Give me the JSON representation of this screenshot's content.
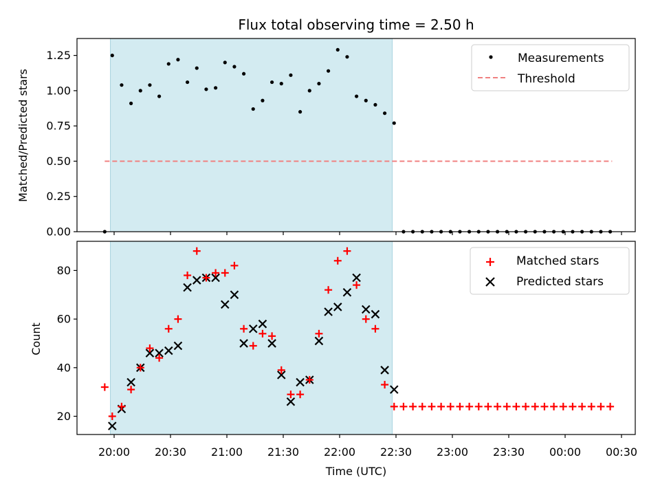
{
  "chart_data": {
    "title": "Flux total observing time = 2.50 h",
    "shaded_interval": [
      "19:58",
      "22:28"
    ],
    "x_ticks": [
      "20:00",
      "20:30",
      "21:00",
      "21:30",
      "22:00",
      "22:30",
      "23:00",
      "23:30",
      "00:00",
      "00:30"
    ],
    "xlabel": "Time (UTC)",
    "shade_color": "#d3ebf1",
    "charts": [
      {
        "type": "scatter",
        "ylabel": "Matched/Predicted stars",
        "ylim": [
          0,
          1.37
        ],
        "yticks": [
          "0.00",
          "0.25",
          "0.50",
          "0.75",
          "1.00",
          "1.25"
        ],
        "legend_position": "top-right",
        "legend": [
          "Measurements",
          "Threshold"
        ],
        "threshold": {
          "value": 0.5,
          "x_start": "19:55",
          "x_end": "00:25",
          "color": "#f08080"
        },
        "series": [
          {
            "name": "Measurements",
            "color": "#000000",
            "x": [
              "19:55",
              "19:59",
              "20:04",
              "20:09",
              "20:14",
              "20:19",
              "20:24",
              "20:29",
              "20:34",
              "20:39",
              "20:44",
              "20:49",
              "20:54",
              "20:59",
              "21:04",
              "21:09",
              "21:14",
              "21:19",
              "21:24",
              "21:29",
              "21:34",
              "21:39",
              "21:44",
              "21:49",
              "21:54",
              "21:59",
              "22:04",
              "22:09",
              "22:14",
              "22:19",
              "22:24",
              "22:29",
              "22:34",
              "22:39",
              "22:44",
              "22:49",
              "22:54",
              "22:59",
              "23:04",
              "23:09",
              "23:14",
              "23:19",
              "23:24",
              "23:29",
              "23:34",
              "23:39",
              "23:44",
              "23:49",
              "23:54",
              "23:59",
              "00:04",
              "00:09",
              "00:14",
              "00:19",
              "00:24"
            ],
            "y": [
              0.0,
              1.25,
              1.04,
              0.91,
              1.0,
              1.04,
              0.96,
              1.19,
              1.22,
              1.06,
              1.16,
              1.01,
              1.02,
              1.2,
              1.17,
              1.12,
              0.87,
              0.93,
              1.06,
              1.05,
              1.11,
              0.85,
              1.0,
              1.05,
              1.14,
              1.29,
              1.24,
              0.96,
              0.93,
              0.9,
              0.84,
              0.77,
              0.0,
              0.0,
              0.0,
              0.0,
              0.0,
              0.0,
              0.0,
              0.0,
              0.0,
              0.0,
              0.0,
              0.0,
              0.0,
              0.0,
              0.0,
              0.0,
              0.0,
              0.0,
              0.0,
              0.0,
              0.0,
              0.0,
              0.0
            ]
          }
        ]
      },
      {
        "type": "scatter",
        "ylabel": "Count",
        "ylim": [
          12.5,
          92
        ],
        "yticks": [
          "20",
          "40",
          "60",
          "80"
        ],
        "legend_position": "top-right",
        "legend": [
          "Matched stars",
          "Predicted stars"
        ],
        "series": [
          {
            "name": "Matched stars",
            "color": "#ff0000",
            "x": [
              "19:55",
              "19:59",
              "20:04",
              "20:09",
              "20:14",
              "20:19",
              "20:24",
              "20:29",
              "20:34",
              "20:39",
              "20:44",
              "20:49",
              "20:54",
              "20:59",
              "21:04",
              "21:09",
              "21:14",
              "21:19",
              "21:24",
              "21:29",
              "21:34",
              "21:39",
              "21:44",
              "21:49",
              "21:54",
              "21:59",
              "22:04",
              "22:09",
              "22:14",
              "22:19",
              "22:24",
              "22:29",
              "22:34",
              "22:39",
              "22:44",
              "22:49",
              "22:54",
              "22:59",
              "23:04",
              "23:09",
              "23:14",
              "23:19",
              "23:24",
              "23:29",
              "23:34",
              "23:39",
              "23:44",
              "23:49",
              "23:54",
              "23:59",
              "00:04",
              "00:09",
              "00:14",
              "00:19",
              "00:24"
            ],
            "y": [
              32,
              20,
              24,
              31,
              40,
              48,
              44,
              56,
              60,
              78,
              88,
              77,
              79,
              79,
              82,
              56,
              49,
              54,
              53,
              39,
              29,
              29,
              35,
              54,
              72,
              84,
              88,
              74,
              60,
              56,
              33,
              24,
              24,
              24,
              24,
              24,
              24,
              24,
              24,
              24,
              24,
              24,
              24,
              24,
              24,
              24,
              24,
              24,
              24,
              24,
              24,
              24,
              24,
              24,
              24
            ]
          },
          {
            "name": "Predicted stars",
            "color": "#000000",
            "x": [
              "19:59",
              "20:04",
              "20:09",
              "20:14",
              "20:19",
              "20:24",
              "20:29",
              "20:34",
              "20:39",
              "20:44",
              "20:49",
              "20:54",
              "20:59",
              "21:04",
              "21:09",
              "21:14",
              "21:19",
              "21:24",
              "21:29",
              "21:34",
              "21:39",
              "21:44",
              "21:49",
              "21:54",
              "21:59",
              "22:04",
              "22:09",
              "22:14",
              "22:19",
              "22:24",
              "22:29"
            ],
            "y": [
              16,
              23,
              34,
              40,
              46,
              46,
              47,
              49,
              73,
              76,
              77,
              77,
              66,
              70,
              50,
              56,
              58,
              50,
              37,
              26,
              34,
              35,
              51,
              63,
              65,
              71,
              77,
              64,
              62,
              39,
              31
            ]
          }
        ]
      }
    ]
  }
}
